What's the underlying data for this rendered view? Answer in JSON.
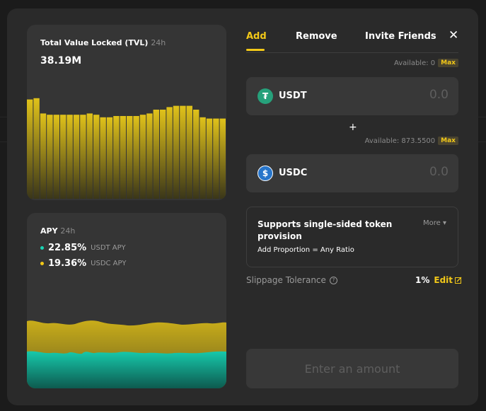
{
  "tvl": {
    "title": "Total Value Locked (TVL)",
    "period": "24h",
    "value": "38.19M"
  },
  "apy": {
    "title": "APY",
    "period": "24h",
    "rows": [
      {
        "value": "22.85%",
        "label": "USDT APY",
        "color": "#19d3b4"
      },
      {
        "value": "19.36%",
        "label": "USDC  APY",
        "color": "#f2c818"
      }
    ]
  },
  "tabs": [
    {
      "label": "Add"
    },
    {
      "label": "Remove"
    },
    {
      "label": "Invite Friends"
    }
  ],
  "close_icon": "close-icon",
  "token_a": {
    "available_label": "Available: 0",
    "max_label": "Max",
    "name": "USDT",
    "placeholder": "0.0",
    "icon": "tether-icon",
    "color": "#26a17b"
  },
  "plus": "+",
  "token_b": {
    "available_label": "Available: 873.5500",
    "max_label": "Max",
    "name": "USDC",
    "placeholder": "0.0",
    "icon": "usdc-icon",
    "color": "#2775ca"
  },
  "info": {
    "title": "Supports single-sided token provision",
    "more_label": "More",
    "subtitle": "Add Proportion  = Any Ratio"
  },
  "slippage": {
    "label": "Slippage Tolerance",
    "value": "1%",
    "edit_label": "Edit"
  },
  "submit_label": "Enter an amount",
  "colors": {
    "accent": "#f2c818",
    "teal": "#19d3b4"
  }
}
